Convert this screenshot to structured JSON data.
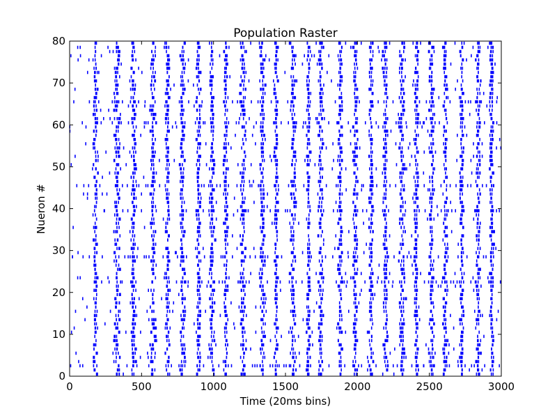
{
  "chart_data": {
    "type": "scatter",
    "title": "Population Raster",
    "xlabel": "Time (20ms bins)",
    "ylabel": "Nueron #",
    "xlim": [
      0,
      3000
    ],
    "ylim": [
      0,
      80
    ],
    "xticks": [
      0,
      500,
      1000,
      1500,
      2000,
      2500,
      3000
    ],
    "yticks": [
      0,
      10,
      20,
      30,
      40,
      50,
      60,
      70,
      80
    ],
    "grid": false,
    "marker": "vertical-line",
    "series": [
      {
        "color": "#0000ff",
        "bursts": [
          {
            "t": 180,
            "w": 22
          },
          {
            "t": 330,
            "w": 30
          },
          {
            "t": 445,
            "w": 24
          },
          {
            "t": 580,
            "w": 28
          },
          {
            "t": 680,
            "w": 20
          },
          {
            "t": 785,
            "w": 26
          },
          {
            "t": 895,
            "w": 22
          },
          {
            "t": 990,
            "w": 24
          },
          {
            "t": 1085,
            "w": 20
          },
          {
            "t": 1205,
            "w": 28
          },
          {
            "t": 1340,
            "w": 26
          },
          {
            "t": 1435,
            "w": 20
          },
          {
            "t": 1555,
            "w": 28
          },
          {
            "t": 1660,
            "w": 20
          },
          {
            "t": 1745,
            "w": 26
          },
          {
            "t": 1880,
            "w": 22
          },
          {
            "t": 1985,
            "w": 22
          },
          {
            "t": 2095,
            "w": 20
          },
          {
            "t": 2195,
            "w": 24
          },
          {
            "t": 2310,
            "w": 28
          },
          {
            "t": 2410,
            "w": 20
          },
          {
            "t": 2515,
            "w": 24
          },
          {
            "t": 2610,
            "w": 22
          },
          {
            "t": 2725,
            "w": 20
          },
          {
            "t": 2840,
            "w": 24
          },
          {
            "t": 2935,
            "w": 20
          }
        ],
        "background_neurons": [
          2,
          22,
          28,
          39,
          45,
          60,
          65
        ]
      }
    ]
  }
}
